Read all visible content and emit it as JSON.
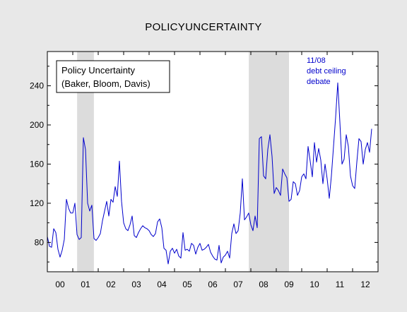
{
  "title": "POLICYUNCERTAINTY",
  "legend": {
    "line1": "Policy Uncertainty",
    "line2": "(Baker, Bloom, Davis)"
  },
  "annotation": {
    "line1": "11/08",
    "line2": "debt ceiling",
    "line3": "debate"
  },
  "colors": {
    "background": "#e8e8e8",
    "plot_area": "#ffffff",
    "series": "#0000cc",
    "recession_shade": "#dcdcdc"
  },
  "chart_data": {
    "type": "line",
    "xlabel": "",
    "ylabel": "",
    "ylim": [
      50,
      275
    ],
    "xlim": [
      2000.0,
      2013.0
    ],
    "y_ticks": [
      80,
      120,
      160,
      200,
      240
    ],
    "x_tick_labels": [
      "00",
      "01",
      "02",
      "03",
      "04",
      "05",
      "06",
      "07",
      "08",
      "09",
      "10",
      "11",
      "12"
    ],
    "shaded_regions": [
      [
        2001.17,
        2001.83
      ],
      [
        2007.92,
        2009.5
      ]
    ],
    "legend_position": "top-left",
    "grid": false,
    "series": [
      {
        "name": "Policy Uncertainty (Baker, Bloom, Davis)",
        "start": 2000.0,
        "freq": 12,
        "values": [
          86,
          76,
          75,
          94,
          90,
          73,
          65,
          72,
          83,
          124,
          115,
          110,
          110,
          120,
          88,
          83,
          85,
          187,
          175,
          120,
          112,
          118,
          84,
          82,
          85,
          89,
          102,
          112,
          122,
          107,
          124,
          121,
          137,
          127,
          163,
          122,
          100,
          94,
          92,
          98,
          107,
          87,
          85,
          90,
          94,
          97,
          95,
          94,
          92,
          88,
          86,
          89,
          101,
          104,
          95,
          74,
          72,
          58,
          71,
          74,
          69,
          73,
          66,
          64,
          90,
          72,
          73,
          71,
          79,
          77,
          68,
          75,
          79,
          72,
          73,
          75,
          78,
          70,
          66,
          63,
          62,
          77,
          59,
          65,
          67,
          71,
          64,
          89,
          99,
          89,
          92,
          110,
          145,
          103,
          106,
          110,
          98,
          92,
          107,
          95,
          186,
          188,
          148,
          145,
          175,
          190,
          168,
          130,
          136,
          133,
          128,
          155,
          150,
          146,
          122,
          124,
          142,
          140,
          128,
          133,
          147,
          150,
          145,
          178,
          163,
          147,
          182,
          162,
          176,
          164,
          140,
          160,
          145,
          125,
          148,
          178,
          208,
          243,
          203,
          160,
          165,
          190,
          178,
          148,
          138,
          135,
          162,
          186,
          183,
          160,
          175,
          182,
          172,
          196
        ]
      }
    ]
  }
}
